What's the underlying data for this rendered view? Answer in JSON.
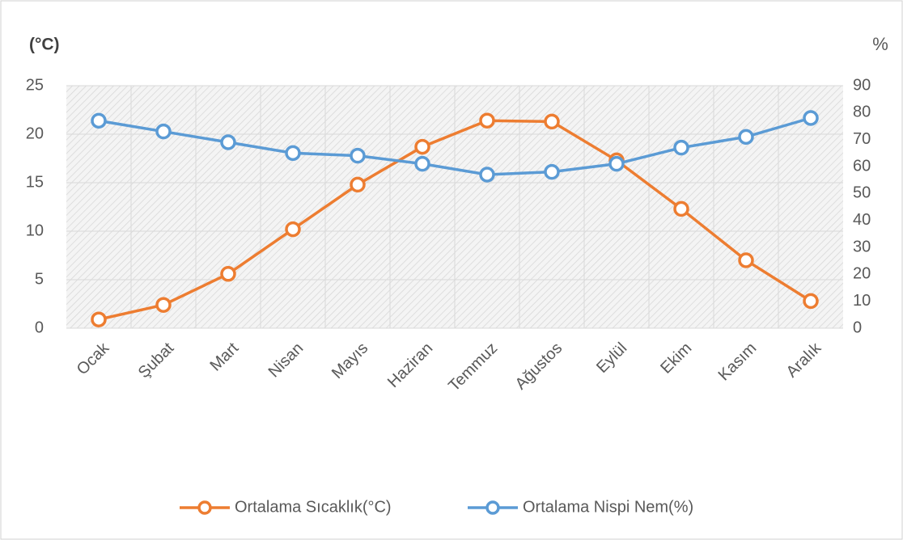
{
  "chart_data": {
    "type": "line",
    "y_label": "(°C)",
    "y2_label": "%",
    "categories": [
      "Ocak",
      "Şubat",
      "Mart",
      "Nisan",
      "Mayıs",
      "Haziran",
      "Temmuz",
      "Ağustos",
      "Eylül",
      "Ekim",
      "Kasım",
      "Aralık"
    ],
    "series": [
      {
        "name": "Ortalama Sıcaklık(°C)",
        "color": "#ed7d31",
        "axis": "y",
        "values": [
          0.9,
          2.4,
          5.6,
          10.2,
          14.8,
          18.7,
          21.4,
          21.3,
          17.3,
          12.3,
          7.0,
          2.8
        ]
      },
      {
        "name": "Ortalama Nispi Nem(%)",
        "color": "#5b9bd5",
        "axis": "y2",
        "values": [
          77,
          73,
          69,
          65,
          64,
          61,
          57,
          58,
          61,
          67,
          71,
          78
        ]
      }
    ],
    "ylim": [
      0,
      25
    ],
    "yticks": [
      0,
      5,
      10,
      15,
      20,
      25
    ],
    "y2lim": [
      0,
      90
    ],
    "y2ticks": [
      0,
      10,
      20,
      30,
      40,
      50,
      60,
      70,
      80,
      90
    ],
    "grid": true,
    "legend": "bottom"
  }
}
